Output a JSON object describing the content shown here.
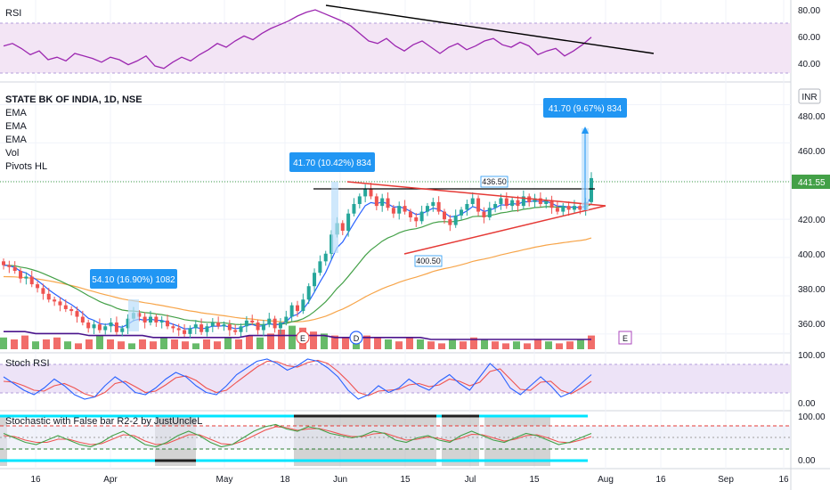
{
  "colors": {
    "up": "#26a69a",
    "down": "#ef5350",
    "ema_fast": "#2962ff",
    "ema_mid": "#43a047",
    "ema_slow": "#f7a54a",
    "rsi_line": "#9c27b0",
    "rsi_band": "#e1bee7",
    "stoch_k": "#2962ff",
    "stoch_d": "#ef5350",
    "cyan": "#00e5ff",
    "callout": "#2196f3",
    "triangle": "#e53935",
    "trendline": "#000000",
    "price_tag": "#43a047",
    "vol_up": "#4caf50",
    "vol_down": "#ef5350",
    "vol_ma": "#4a148c"
  },
  "rsi_pane": {
    "title": "RSI",
    "ticks": [
      "80.00",
      "60.00",
      "40.00"
    ]
  },
  "price_pane": {
    "symbol_title": "STATE BK OF INDIA, 1D, NSE",
    "indicators": [
      "EMA",
      "EMA",
      "EMA",
      "Vol",
      "Pivots HL"
    ],
    "currency": "INR",
    "last_price": "441.55",
    "ticks": [
      "480.00",
      "460.00",
      "440.00",
      "420.00",
      "400.00",
      "380.00",
      "360.00"
    ],
    "callouts": [
      {
        "text": "54.10 (16.90%) 1082"
      },
      {
        "text": "41.70 (10.42%) 834"
      },
      {
        "text": "41.70 (9.67%) 834"
      }
    ],
    "pivot_labels": [
      "436.50",
      "400.50"
    ],
    "event_badges": [
      "E",
      "D",
      "E"
    ]
  },
  "stoch_rsi_pane": {
    "title": "Stoch RSI",
    "ticks": [
      "100.00",
      "0.00"
    ]
  },
  "stoch_pane": {
    "title": "Stochastic with False bar R2-2 by JustUncleL",
    "ticks": [
      "100.00",
      "0.00"
    ]
  },
  "time_axis": {
    "labels": [
      "16",
      "Apr",
      "May",
      "18",
      "Jun",
      "15",
      "Jul",
      "15",
      "Aug",
      "16",
      "Sep",
      "16"
    ]
  },
  "chart_data": {
    "type": "candlestick",
    "title": "STATE BK OF INDIA, 1D, NSE",
    "ylim": [
      352,
      490
    ],
    "close_series": [
      396,
      395,
      393,
      389,
      390,
      386,
      384,
      381,
      378,
      377,
      375,
      373,
      372,
      369,
      366,
      363,
      365,
      362,
      364,
      366,
      361,
      363,
      368,
      371,
      369,
      366,
      369,
      366,
      367,
      364,
      363,
      362,
      360,
      363,
      365,
      361,
      364,
      366,
      364,
      365,
      362,
      361,
      364,
      367,
      366,
      362,
      365,
      368,
      363,
      366,
      369,
      375,
      372,
      378,
      385,
      392,
      398,
      402,
      412,
      418,
      414,
      423,
      428,
      432,
      436,
      432,
      427,
      431,
      426,
      423,
      427,
      424,
      421,
      419,
      424,
      427,
      429,
      424,
      420,
      417,
      422,
      425,
      428,
      431,
      424,
      421,
      426,
      428,
      431,
      427,
      430,
      427,
      432,
      429,
      431,
      428,
      430,
      426,
      424,
      427,
      425,
      427,
      425,
      429,
      441.55
    ],
    "rsi": {
      "ylim": [
        30,
        90
      ],
      "values": [
        56,
        58,
        54,
        49,
        52,
        45,
        47,
        44,
        50,
        48,
        46,
        43,
        47,
        45,
        41,
        44,
        48,
        40,
        38,
        43,
        47,
        44,
        49,
        53,
        58,
        55,
        60,
        64,
        61,
        66,
        70,
        73,
        76,
        80,
        83,
        85,
        82,
        79,
        76,
        72,
        66,
        60,
        58,
        62,
        56,
        52,
        57,
        60,
        55,
        50,
        55,
        58,
        53,
        56,
        60,
        62,
        57,
        55,
        59,
        56,
        49,
        52,
        54,
        48,
        52,
        57,
        63
      ]
    },
    "volume": {
      "values": [
        6,
        5,
        7,
        4,
        5,
        6,
        4,
        3,
        5,
        7,
        5,
        4,
        3,
        5,
        4,
        6,
        5,
        4,
        3,
        5,
        4,
        6,
        5,
        7,
        6,
        8,
        10,
        12,
        11,
        9,
        8,
        7,
        6,
        5,
        7,
        6,
        5,
        4,
        6,
        5,
        4,
        3,
        5,
        4,
        6,
        5,
        4,
        3,
        4,
        3,
        5,
        4,
        3,
        4,
        5,
        7
      ],
      "ma": [
        9,
        9,
        9,
        8,
        8,
        8,
        8,
        8,
        7,
        7,
        7,
        7,
        7,
        7,
        6,
        6,
        6,
        6,
        6,
        6,
        6,
        6,
        6,
        7,
        7,
        7,
        7,
        7,
        7,
        7,
        7,
        6,
        6,
        6,
        6,
        6,
        6,
        6,
        6,
        6,
        5,
        5,
        5,
        5,
        5,
        5,
        5,
        5,
        5,
        5,
        5,
        5,
        5,
        5,
        5,
        5
      ]
    },
    "stoch_rsi": {
      "ylim": [
        -10,
        110
      ],
      "k": [
        60,
        45,
        30,
        20,
        35,
        55,
        40,
        20,
        10,
        15,
        40,
        60,
        45,
        25,
        20,
        35,
        55,
        70,
        60,
        40,
        25,
        20,
        40,
        65,
        80,
        95,
        100,
        90,
        75,
        85,
        100,
        95,
        80,
        60,
        30,
        10,
        20,
        40,
        25,
        35,
        55,
        40,
        30,
        50,
        65,
        45,
        30,
        60,
        90,
        70,
        35,
        20,
        40,
        60,
        40,
        15,
        25,
        45,
        65
      ],
      "d": [
        50,
        48,
        40,
        30,
        28,
        40,
        45,
        35,
        22,
        15,
        25,
        45,
        50,
        38,
        25,
        28,
        42,
        58,
        62,
        52,
        35,
        25,
        30,
        48,
        65,
        82,
        95,
        94,
        85,
        82,
        92,
        97,
        90,
        72,
        50,
        25,
        18,
        28,
        30,
        32,
        42,
        45,
        38,
        42,
        55,
        50,
        40,
        48,
        72,
        78,
        55,
        32,
        30,
        48,
        50,
        30,
        22,
        35,
        50
      ]
    },
    "stochastic": {
      "ylim": [
        -10,
        110
      ],
      "k": [
        65,
        55,
        45,
        40,
        50,
        60,
        50,
        40,
        35,
        45,
        60,
        70,
        55,
        40,
        35,
        45,
        60,
        70,
        60,
        45,
        35,
        40,
        55,
        70,
        80,
        85,
        75,
        70,
        80,
        75,
        65,
        60,
        55,
        60,
        70,
        65,
        50,
        45,
        55,
        60,
        50,
        45,
        60,
        70,
        60,
        50,
        45,
        55,
        65,
        60,
        50,
        40,
        45,
        55,
        65
      ],
      "d": [
        60,
        58,
        50,
        45,
        45,
        52,
        52,
        45,
        40,
        42,
        52,
        62,
        60,
        48,
        40,
        42,
        52,
        62,
        62,
        52,
        42,
        40,
        48,
        60,
        72,
        80,
        78,
        72,
        75,
        76,
        70,
        63,
        58,
        58,
        64,
        66,
        58,
        50,
        52,
        57,
        54,
        48,
        54,
        63,
        62,
        55,
        48,
        52,
        60,
        62,
        55,
        46,
        44,
        50,
        58
      ]
    }
  }
}
